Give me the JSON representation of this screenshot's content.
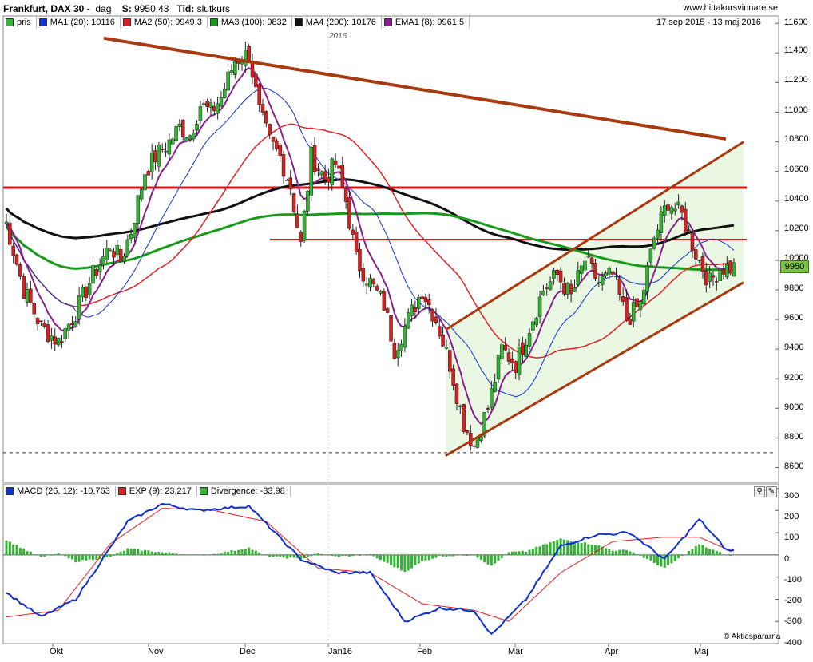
{
  "header": {
    "instrument": "Frankfurt, DAX 30 -",
    "period": "dag",
    "s_label": "S:",
    "s_value": "9950,43",
    "tid_label": "Tid:",
    "tid_value": "slutkurs",
    "site": "www.hittakursvinnare.se"
  },
  "price_panel": {
    "date_range": "17 sep 2015 - 13 maj 2016",
    "year_marker": "2016",
    "legend": [
      {
        "label": "pris",
        "color": "#33b333"
      },
      {
        "label": "MA1 (20): 10116",
        "color": "#1030d0"
      },
      {
        "label": "MA2 (50): 9949,3",
        "color": "#e02020"
      },
      {
        "label": "MA3 (100): 9832",
        "color": "#1a9a1a"
      },
      {
        "label": "MA4 (200): 10176",
        "color": "#111111"
      },
      {
        "label": "EMA1 (8): 9961,5",
        "color": "#8a2090"
      }
    ],
    "last_price_tag": "9950",
    "y_ticks": [
      "11600",
      "11400",
      "11200",
      "11000",
      "10800",
      "10600",
      "10400",
      "10200",
      "10000",
      "9800",
      "9600",
      "9400",
      "9200",
      "9000",
      "8800",
      "8600"
    ]
  },
  "macd_panel": {
    "legend": [
      {
        "label": "MACD (26, 12): -10,763",
        "color": "#1030d0"
      },
      {
        "label": "EXP (9): 23,217",
        "color": "#e02020"
      },
      {
        "label": "Divergence: -33,98",
        "color": "#33b333"
      }
    ],
    "y_ticks": [
      "300",
      "200",
      "100",
      "0",
      "-100",
      "-200",
      "-300",
      "-400"
    ],
    "watermark": "© Aktiespararna"
  },
  "x_ticks": [
    "Okt",
    "Nov",
    "Dec",
    "Jan16",
    "Feb",
    "Mar",
    "Apr",
    "Maj"
  ],
  "colors": {
    "up": "#33b333",
    "down": "#d42020",
    "channel_fill": "#e8f7e0",
    "trendline": "#a83a10",
    "support": "#e01010"
  },
  "chart_data": {
    "type": "candlestick",
    "title": "Frankfurt, DAX 30",
    "ylim": [
      8500,
      11650
    ],
    "overlays": [
      {
        "name": "MA1 (20)",
        "last": 10116
      },
      {
        "name": "MA2 (50)",
        "last": 9949.3
      },
      {
        "name": "MA3 (100)",
        "last": 9832
      },
      {
        "name": "MA4 (200)",
        "last": 10176
      },
      {
        "name": "EMA1 (8)",
        "last": 9961.5
      }
    ],
    "close_path": [
      [
        0,
        10250
      ],
      [
        5,
        9800
      ],
      [
        10,
        9550
      ],
      [
        15,
        9450
      ],
      [
        20,
        9650
      ],
      [
        25,
        9900
      ],
      [
        30,
        10100
      ],
      [
        33,
        10000
      ],
      [
        36,
        10200
      ],
      [
        40,
        10600
      ],
      [
        43,
        10700
      ],
      [
        47,
        10800
      ],
      [
        50,
        10900
      ],
      [
        53,
        10850
      ],
      [
        56,
        11050
      ],
      [
        59,
        11000
      ],
      [
        62,
        11100
      ],
      [
        66,
        11350
      ],
      [
        70,
        11400
      ],
      [
        73,
        11000
      ],
      [
        76,
        10800
      ],
      [
        79,
        10700
      ],
      [
        82,
        10500
      ],
      [
        85,
        10100
      ],
      [
        88,
        10700
      ],
      [
        92,
        10550
      ],
      [
        95,
        10650
      ],
      [
        98,
        10400
      ],
      [
        101,
        10000
      ],
      [
        105,
        9850
      ],
      [
        109,
        9700
      ],
      [
        112,
        9400
      ],
      [
        116,
        9600
      ],
      [
        120,
        9800
      ],
      [
        124,
        9600
      ],
      [
        128,
        9300
      ],
      [
        132,
        8900
      ],
      [
        135,
        8750
      ],
      [
        139,
        9000
      ],
      [
        143,
        9400
      ],
      [
        147,
        9300
      ],
      [
        151,
        9550
      ],
      [
        155,
        9800
      ],
      [
        159,
        9900
      ],
      [
        163,
        9750
      ],
      [
        167,
        10000
      ],
      [
        171,
        9850
      ],
      [
        175,
        9900
      ],
      [
        179,
        9600
      ],
      [
        183,
        9700
      ],
      [
        187,
        10150
      ],
      [
        191,
        10400
      ],
      [
        195,
        10300
      ],
      [
        199,
        10050
      ],
      [
        203,
        9850
      ],
      [
        206,
        9950
      ]
    ],
    "horizontal_levels": [
      10490,
      10140,
      8700
    ],
    "trendlines": [
      {
        "from": [
          "Okt",
          11500
        ],
        "to": [
          "Maj",
          10820
        ]
      },
      {
        "from": [
          "Feb",
          9530
        ],
        "to": [
          "Maj",
          10800
        ]
      },
      {
        "from": [
          "Feb",
          8680
        ],
        "to": [
          "Maj",
          9850
        ]
      }
    ],
    "macd": {
      "ylim": [
        -400,
        320
      ],
      "macd_path": [
        [
          0,
          -170
        ],
        [
          10,
          -280
        ],
        [
          20,
          -200
        ],
        [
          35,
          150
        ],
        [
          45,
          230
        ],
        [
          55,
          200
        ],
        [
          70,
          220
        ],
        [
          85,
          -20
        ],
        [
          95,
          -80
        ],
        [
          105,
          -80
        ],
        [
          115,
          -300
        ],
        [
          125,
          -240
        ],
        [
          135,
          -250
        ],
        [
          140,
          -360
        ],
        [
          150,
          -200
        ],
        [
          160,
          40
        ],
        [
          170,
          90
        ],
        [
          180,
          100
        ],
        [
          190,
          -20
        ],
        [
          200,
          160
        ],
        [
          208,
          20
        ]
      ],
      "signal_path": [
        [
          0,
          -280
        ],
        [
          15,
          -250
        ],
        [
          30,
          50
        ],
        [
          45,
          210
        ],
        [
          60,
          200
        ],
        [
          75,
          150
        ],
        [
          90,
          -60
        ],
        [
          105,
          -80
        ],
        [
          120,
          -220
        ],
        [
          135,
          -250
        ],
        [
          145,
          -300
        ],
        [
          160,
          -80
        ],
        [
          175,
          60
        ],
        [
          190,
          80
        ],
        [
          200,
          80
        ],
        [
          208,
          25
        ]
      ]
    }
  }
}
